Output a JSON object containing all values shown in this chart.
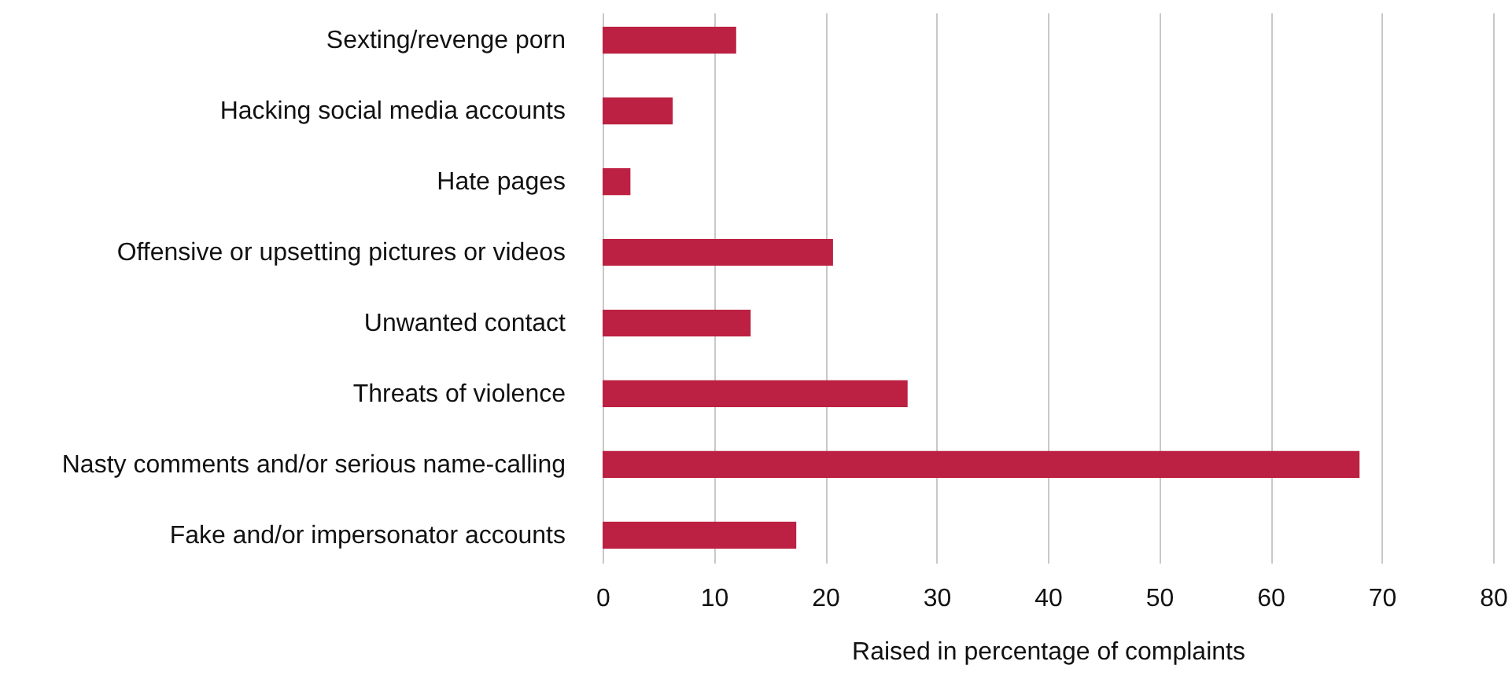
{
  "chart_data": {
    "type": "bar",
    "orientation": "horizontal",
    "xlabel": "Raised in percentage of complaints",
    "categories": [
      "Sexting/revenge porn",
      "Hacking social media accounts",
      "Hate pages",
      "Offensive or upsetting pictures or videos",
      "Unwanted contact",
      "Threats of violence",
      "Nasty comments and/or serious name-calling",
      "Fake and/or impersonator accounts"
    ],
    "values": [
      12,
      6.3,
      2.5,
      20.7,
      13.3,
      27.4,
      68,
      17.4
    ],
    "color": "#bc2042",
    "xlim": [
      0,
      80
    ],
    "xticks": [
      0,
      10,
      20,
      30,
      40,
      50,
      60,
      70,
      80
    ],
    "grid": "x"
  }
}
